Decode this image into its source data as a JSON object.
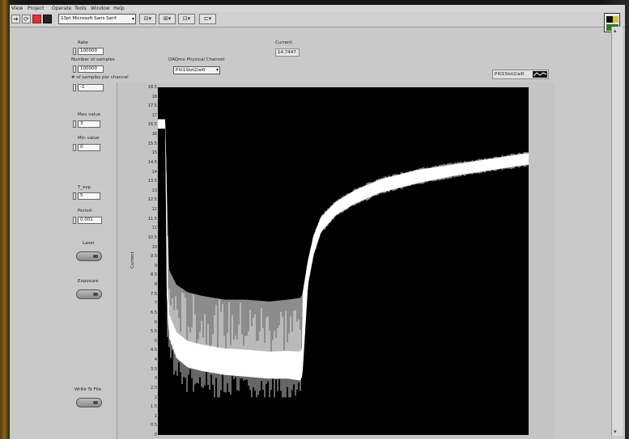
{
  "window": {
    "menu": [
      "View",
      "Project",
      "Operate",
      "Tools",
      "Window",
      "Help"
    ]
  },
  "toolbar": {
    "font_select": "13pt Microsoft Sans Serif"
  },
  "controls": {
    "rate": {
      "label": "Rate",
      "value": "100000"
    },
    "samples": {
      "label": "Number of samples",
      "value": "100000"
    },
    "per_channel": {
      "label": "# of samples per channel",
      "value": "-1"
    },
    "max_value": {
      "label": "Max value",
      "value": "3"
    },
    "min_value": {
      "label": "Min value",
      "value": "0"
    },
    "t_exp": {
      "label": "T_exp",
      "value": "5"
    },
    "period": {
      "label": "Period",
      "value": "0.001"
    },
    "laser": {
      "label": "Laser"
    },
    "exposure": {
      "label": "Exposure"
    },
    "write_to_file": {
      "label": "Write To File"
    },
    "channel": {
      "label": "DAQmx Physical Channel",
      "value": "PXI1Slot2/ai0"
    },
    "current": {
      "label": "Current",
      "value": "14.7447"
    }
  },
  "graph": {
    "legend": "PXI1Slot2/ai0",
    "ylabel": "Current"
  },
  "chart_data": {
    "type": "line",
    "ylabel": "Current",
    "ylim": [
      0,
      18.5
    ],
    "yticks": [
      "18.5",
      "18",
      "17.5",
      "17",
      "16.5",
      "16",
      "15.5",
      "15",
      "14.5",
      "14",
      "13.5",
      "13",
      "12.5",
      "12",
      "11.5",
      "11",
      "10.5",
      "10",
      "9.5",
      "9",
      "8.5",
      "8",
      "7.5",
      "7",
      "6.5",
      "6",
      "5.5",
      "5",
      "4.5",
      "4",
      "3.5",
      "3",
      "2.5",
      "2",
      "1.5",
      "1",
      "0.5",
      "0"
    ],
    "series": [
      {
        "color": "#ffffff",
        "lower_x": [
          0,
          0.02,
          0.024,
          0.03,
          0.05,
          0.08,
          0.12,
          0.18,
          0.24,
          0.3,
          0.35,
          0.385,
          0.39,
          0.405,
          0.42,
          0.44,
          0.48,
          0.53,
          0.6,
          0.7,
          0.8,
          0.9,
          1.0
        ],
        "lower_y": [
          16.3,
          16.3,
          7.5,
          5.2,
          4.1,
          3.6,
          3.4,
          3.2,
          3.1,
          3.0,
          3.0,
          2.9,
          3.2,
          8.0,
          9.6,
          10.8,
          11.7,
          12.3,
          12.9,
          13.4,
          13.8,
          14.1,
          14.4
        ],
        "upper_x": [
          0,
          0.02,
          0.024,
          0.03,
          0.05,
          0.08,
          0.12,
          0.18,
          0.24,
          0.3,
          0.35,
          0.385,
          0.39,
          0.405,
          0.42,
          0.44,
          0.48,
          0.53,
          0.6,
          0.7,
          0.8,
          0.9,
          1.0
        ],
        "upper_y": [
          16.8,
          16.8,
          13.2,
          8.8,
          8.0,
          7.6,
          7.4,
          7.2,
          7.2,
          7.1,
          7.2,
          7.3,
          7.5,
          9.3,
          10.6,
          11.6,
          12.4,
          13.0,
          13.6,
          14.1,
          14.4,
          14.7,
          15.0
        ],
        "spikes_min": [
          2.0,
          4.5
        ]
      }
    ]
  }
}
